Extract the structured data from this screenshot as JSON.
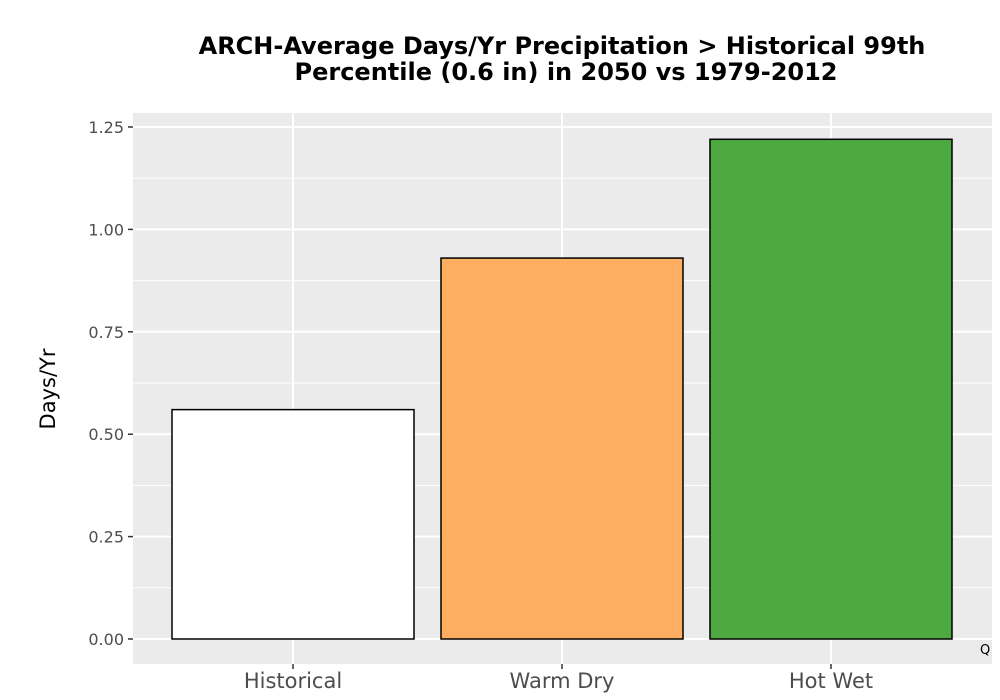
{
  "chart_data": {
    "type": "bar",
    "title_line1": "ARCH-Average Days/Yr Precipitation > Historical 99th",
    "title_line2": "Percentile (0.6 in) in 2050 vs 1979-2012",
    "xlabel": "",
    "ylabel": "Days/Yr",
    "categories": [
      "Historical",
      "Warm Dry",
      "Hot Wet"
    ],
    "values": [
      0.56,
      0.93,
      1.22
    ],
    "colors": [
      "#ffffff",
      "#fdae61",
      "#4daa40"
    ],
    "bar_outline": "#000000",
    "ylim": [
      -0.05,
      1.28
    ],
    "yticks": [
      0.0,
      0.25,
      0.5,
      0.75,
      1.0,
      1.25
    ],
    "ytick_labels": [
      "0.00",
      "0.25",
      "0.50",
      "0.75",
      "1.00",
      "1.25"
    ],
    "grid": true,
    "panel_background": "#ebebeb",
    "grid_color": "#ffffff",
    "corner_text": "Q"
  }
}
